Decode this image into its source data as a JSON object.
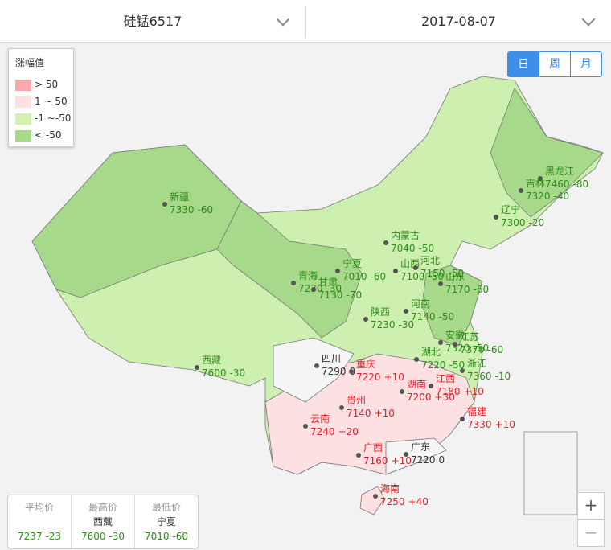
{
  "header": {
    "product": "硅锰6517",
    "date": "2017-08-07"
  },
  "period_buttons": [
    "日",
    "周",
    "月"
  ],
  "legend": {
    "title": "涨幅值",
    "items": [
      "> 50",
      "1 ~ 50",
      "-1 ~-50",
      "< -50"
    ]
  },
  "provinces": [
    {
      "name": "新疆",
      "price": "7330",
      "change": "-60"
    },
    {
      "name": "西藏",
      "price": "7600",
      "change": "-30"
    },
    {
      "name": "青海",
      "price": "7230",
      "change": "-30"
    },
    {
      "name": "甘肃",
      "price": "7130",
      "change": "-70"
    },
    {
      "name": "宁夏",
      "price": "7010",
      "change": "-60"
    },
    {
      "name": "内蒙古",
      "price": "7040",
      "change": "-50"
    },
    {
      "name": "山西",
      "price": "7100",
      "change": "-50"
    },
    {
      "name": "河北",
      "price": "7150",
      "change": "-50"
    },
    {
      "name": "山东",
      "price": "7170",
      "change": "-60"
    },
    {
      "name": "陕西",
      "price": "7230",
      "change": "-30"
    },
    {
      "name": "河南",
      "price": "7140",
      "change": "-50"
    },
    {
      "name": "湖北",
      "price": "7220",
      "change": "-50"
    },
    {
      "name": "安徽",
      "price": "7320",
      "change": "-50"
    },
    {
      "name": "江苏",
      "price": "7370",
      "change": "-60"
    },
    {
      "name": "浙江",
      "price": "7360",
      "change": "-10"
    },
    {
      "name": "四川",
      "price": "7290",
      "change": "0"
    },
    {
      "name": "重庆",
      "price": "7220",
      "change": "+10"
    },
    {
      "name": "湖南",
      "price": "7200",
      "change": "+30"
    },
    {
      "name": "江西",
      "price": "7180",
      "change": "+10"
    },
    {
      "name": "贵州",
      "price": "7140",
      "change": "+10"
    },
    {
      "name": "云南",
      "price": "7240",
      "change": "+20"
    },
    {
      "name": "福建",
      "price": "7330",
      "change": "+10"
    },
    {
      "name": "广西",
      "price": "7160",
      "change": "+10"
    },
    {
      "name": "广东",
      "price": "7220",
      "change": "0"
    },
    {
      "name": "海南",
      "price": "7250",
      "change": "+40"
    },
    {
      "name": "黑龙江",
      "price": "7460",
      "change": "-80"
    },
    {
      "name": "吉林",
      "price": "7320",
      "change": "-40"
    },
    {
      "name": "辽宁",
      "price": "7300",
      "change": "-20"
    }
  ],
  "stats": [
    {
      "label": "平均价",
      "value": "7237",
      "change": "-23"
    },
    {
      "label": "最高价",
      "province": "西藏",
      "value": "7600",
      "change": "-30"
    },
    {
      "label": "最低价",
      "province": "宁夏",
      "value": "7010",
      "change": "-60"
    }
  ],
  "zoom": [
    "+",
    "−"
  ]
}
